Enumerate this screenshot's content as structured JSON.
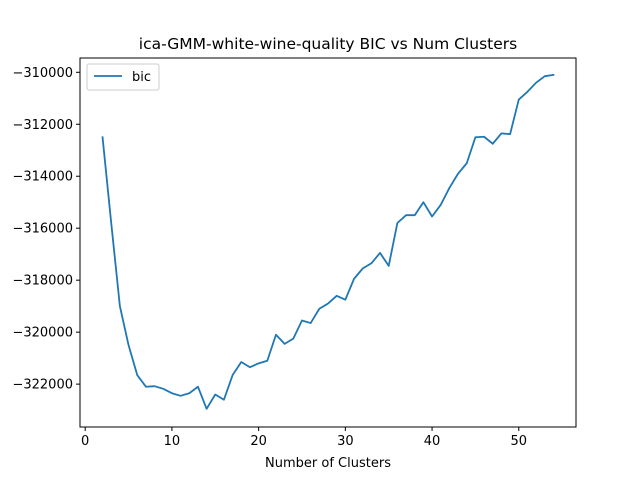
{
  "chart_data": {
    "type": "line",
    "title": "ica-GMM-white-wine-quality BIC vs Num Clusters",
    "xlabel": "Number of Clusters",
    "ylabel": "",
    "xlim": [
      -0.6,
      56.6
    ],
    "ylim": [
      -323650,
      -309450
    ],
    "xticks": [
      0,
      10,
      20,
      30,
      40,
      50
    ],
    "xtick_labels": [
      "0",
      "10",
      "20",
      "30",
      "40",
      "50"
    ],
    "yticks": [
      -322000,
      -320000,
      -318000,
      -316000,
      -314000,
      -312000,
      -310000
    ],
    "ytick_labels": [
      "−322000",
      "−320000",
      "−318000",
      "−316000",
      "−314000",
      "−312000",
      "−310000"
    ],
    "grid": false,
    "legend_position": "top-left",
    "series": [
      {
        "name": "bic",
        "color": "#1f77b4",
        "x": [
          2,
          3,
          4,
          5,
          6,
          7,
          8,
          9,
          10,
          11,
          12,
          13,
          14,
          15,
          16,
          17,
          18,
          19,
          20,
          21,
          22,
          23,
          24,
          25,
          26,
          27,
          28,
          29,
          30,
          31,
          32,
          33,
          34,
          35,
          36,
          37,
          38,
          39,
          40,
          41,
          42,
          43,
          44,
          45,
          46,
          47,
          48,
          49,
          50,
          51,
          52,
          53,
          54
        ],
        "values": [
          -312500,
          -315800,
          -319000,
          -320500,
          -321650,
          -322100,
          -322080,
          -322180,
          -322350,
          -322450,
          -322350,
          -322100,
          -322950,
          -322400,
          -322600,
          -321650,
          -321150,
          -321350,
          -321200,
          -321100,
          -320100,
          -320450,
          -320250,
          -319550,
          -319650,
          -319100,
          -318900,
          -318600,
          -318750,
          -317950,
          -317550,
          -317350,
          -316950,
          -317450,
          -315800,
          -315500,
          -315500,
          -315000,
          -315550,
          -315100,
          -314450,
          -313900,
          -313500,
          -312500,
          -312480,
          -312750,
          -312350,
          -312380,
          -311050,
          -310750,
          -310400,
          -310150,
          -310100
        ]
      }
    ]
  }
}
